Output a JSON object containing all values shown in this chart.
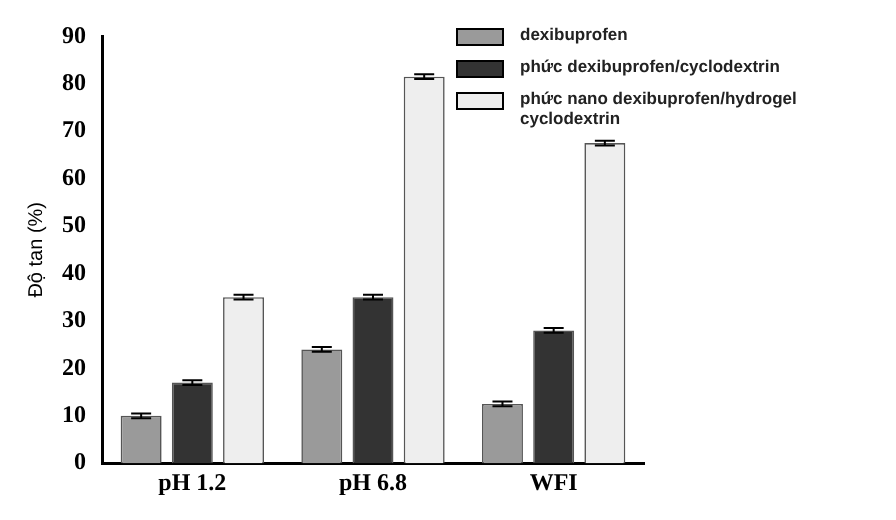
{
  "chart_data": {
    "type": "bar",
    "ylabel": "Độ tan (%)",
    "categories": [
      "pH 1.2",
      "pH 6.8",
      "WFI"
    ],
    "series": [
      {
        "name": "dexibuprofen",
        "color": "#9a9a9a",
        "values": [
          10,
          24,
          12.5
        ],
        "errors": [
          0.5,
          0.5,
          0.5
        ]
      },
      {
        "name": "phức dexibuprofen/cyclodextrin",
        "color": "#333333",
        "values": [
          17,
          35,
          28
        ],
        "errors": [
          0.5,
          0.5,
          0.5
        ]
      },
      {
        "name": "phức nano dexibuprofen/hydrogel cyclodextrin",
        "color": "#eeeeee",
        "values": [
          35,
          81.5,
          67.5
        ],
        "errors": [
          0.5,
          0.5,
          0.5
        ]
      }
    ],
    "ylim": [
      0,
      90
    ],
    "yticks": [
      0,
      10,
      20,
      30,
      40,
      50,
      60,
      70,
      80,
      90
    ],
    "grid": false,
    "legend": "top right"
  }
}
